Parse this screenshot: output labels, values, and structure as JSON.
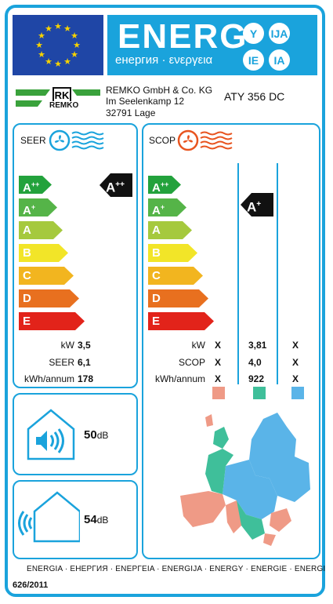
{
  "header": {
    "title": "ENERG",
    "subtitle": "енергия · ενεργεια",
    "langs": [
      "Y",
      "IJA",
      "IE",
      "IA"
    ]
  },
  "supplier": {
    "logo_text": "REMKO",
    "name": "REMKO GmbH & Co. KG",
    "street": "Im Seelenkamp 12",
    "city": "32791 Lage",
    "model": "ATY 356 DC"
  },
  "scale": [
    {
      "label": "A",
      "sup": "++",
      "color": "#23a23c"
    },
    {
      "label": "A",
      "sup": "+",
      "color": "#55b448"
    },
    {
      "label": "A",
      "sup": "",
      "color": "#a5c93d"
    },
    {
      "label": "B",
      "sup": "",
      "color": "#f2e528"
    },
    {
      "label": "C",
      "sup": "",
      "color": "#f2b51f"
    },
    {
      "label": "D",
      "sup": "",
      "color": "#e8701f"
    },
    {
      "label": "E",
      "sup": "",
      "color": "#e2231a"
    }
  ],
  "seer": {
    "label": "SEER",
    "rating": {
      "label": "A",
      "sup": "++"
    },
    "rows": [
      {
        "key": "kW",
        "value": "3,5"
      },
      {
        "key": "SEER",
        "value": "6,1"
      },
      {
        "key": "kWh/annum",
        "value": "178"
      }
    ]
  },
  "scop": {
    "label": "SCOP",
    "rating": {
      "label": "A",
      "sup": "+"
    },
    "rows": [
      {
        "key": "kW",
        "cols": [
          "X",
          "3,81",
          "X"
        ]
      },
      {
        "key": "SCOP",
        "cols": [
          "X",
          "4,0",
          "X"
        ]
      },
      {
        "key": "kWh/annum",
        "cols": [
          "X",
          "922",
          "X"
        ]
      }
    ],
    "zone_colors": [
      "#ef9a86",
      "#3fbf9a",
      "#5ab4e8"
    ]
  },
  "noise": {
    "indoor": {
      "value": "50",
      "unit": "dB"
    },
    "outdoor": {
      "value": "54",
      "unit": "dB"
    }
  },
  "footer": {
    "text": "ENERGIA · ЕНЕРГИЯ · ΕΝΕΡΓΕΙΑ · ENERGIJA · ENERGY · ENERGIE · ENERGI",
    "regulation": "626/2011"
  },
  "colors": {
    "accent": "#1aa3dc",
    "eu_blue": "#1f46a6",
    "eu_star": "#f6d200"
  }
}
